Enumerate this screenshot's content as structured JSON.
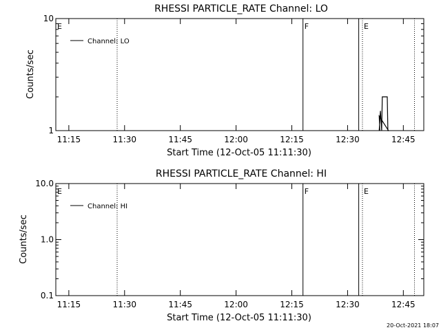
{
  "footer": {
    "timestamp": "20-Oct-2021 18:07"
  },
  "chart_data": [
    {
      "type": "line",
      "title": "RHESSI PARTICLE_RATE Channel: LO",
      "xlabel": "Start Time (12-Oct-05 11:11:30)",
      "ylabel": "Counts/sec",
      "y_scale": "log",
      "ylim": [
        1,
        10
      ],
      "xlim": [
        "11:11:30",
        "12:50:30"
      ],
      "x_ticks": [
        "11:15",
        "11:30",
        "11:45",
        "12:00",
        "12:15",
        "12:30",
        "12:45"
      ],
      "y_ticks": [
        "1",
        "10"
      ],
      "legend": {
        "position": "top-left",
        "entries": [
          "Channel: LO"
        ]
      },
      "event_markers": [
        {
          "label": "E",
          "time": "11:11:30",
          "style": "solid"
        },
        {
          "time": "11:28",
          "style": "dotted"
        },
        {
          "label": "F",
          "time": "12:18",
          "style": "solid"
        },
        {
          "time": "12:33",
          "style": "solid"
        },
        {
          "label": "E",
          "time": "12:34",
          "style": "dotted"
        },
        {
          "time": "12:48",
          "style": "dotted"
        }
      ],
      "series": [
        {
          "name": "Channel: LO",
          "points": [
            {
              "x": "12:38:30",
              "y": 1
            },
            {
              "x": "12:38:50",
              "y": 1.5
            },
            {
              "x": "12:39:10",
              "y": 1
            },
            {
              "x": "12:39:20",
              "y": 2
            },
            {
              "x": "12:40:40",
              "y": 2
            },
            {
              "x": "12:40:50",
              "y": 1
            },
            {
              "x": "12:41:00",
              "y": 1
            },
            {
              "x": "12:38:30",
              "y": 1.35
            },
            {
              "x": "12:38:40",
              "y": 1
            }
          ]
        }
      ]
    },
    {
      "type": "line",
      "title": "RHESSI PARTICLE_RATE Channel: HI",
      "xlabel": "Start Time (12-Oct-05 11:11:30)",
      "ylabel": "Counts/sec",
      "y_scale": "log",
      "ylim": [
        0.1,
        10
      ],
      "xlim": [
        "11:11:30",
        "12:50:30"
      ],
      "x_ticks": [
        "11:15",
        "11:30",
        "11:45",
        "12:00",
        "12:15",
        "12:30",
        "12:45"
      ],
      "y_ticks": [
        "0.1",
        "1.0",
        "10.0"
      ],
      "legend": {
        "position": "top-left",
        "entries": [
          "Channel: HI"
        ]
      },
      "event_markers": [
        {
          "label": "E",
          "time": "11:11:30",
          "style": "solid"
        },
        {
          "time": "11:28",
          "style": "dotted"
        },
        {
          "label": "F",
          "time": "12:18",
          "style": "solid"
        },
        {
          "time": "12:33",
          "style": "solid"
        },
        {
          "label": "E",
          "time": "12:34",
          "style": "dotted"
        },
        {
          "time": "12:48",
          "style": "dotted"
        }
      ],
      "series": [
        {
          "name": "Channel: HI",
          "points": []
        }
      ]
    }
  ]
}
